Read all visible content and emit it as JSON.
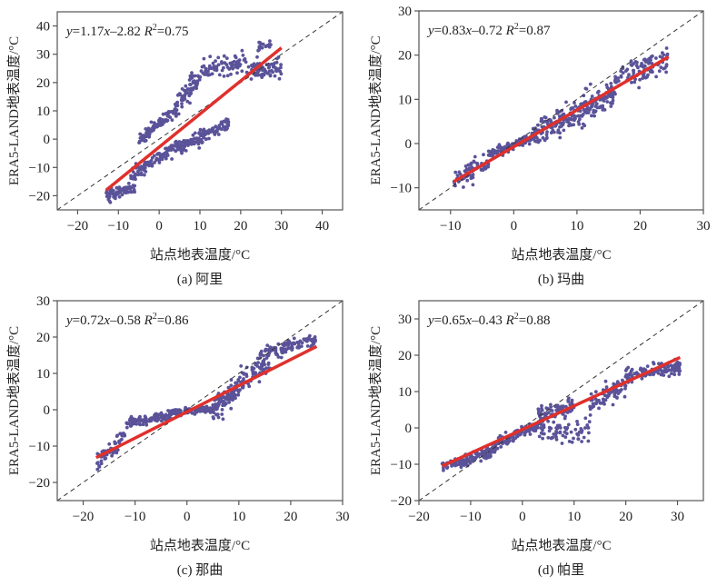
{
  "figure": {
    "colors": {
      "points": "#5a5399",
      "fit_line": "#e0302c",
      "reference_line": "#333333"
    }
  },
  "chart_data": [
    {
      "type": "scatter",
      "id": "a",
      "caption": "(a) 阿里",
      "xlabel": "站点地表温度/°C",
      "ylabel": "ERA5-LAND地表温度/°C",
      "xlim": [
        -25,
        45
      ],
      "ylim": [
        -25,
        45
      ],
      "xticks": [
        -20,
        -10,
        0,
        10,
        20,
        30,
        40
      ],
      "yticks": [
        -20,
        -10,
        0,
        10,
        20,
        30,
        40
      ],
      "equation": {
        "lhs": "y",
        "text": "=1.17",
        "var": "x",
        "tail": "–2.82",
        "r2_label": "R",
        "r2_sup": "2",
        "r2_value": "=0.75"
      },
      "fit": {
        "slope": 1.17,
        "intercept": -2.82,
        "x_range": [
          -13,
          30
        ]
      },
      "reference_line": "1:1",
      "clusters": [
        {
          "x": [
            -13,
            -6
          ],
          "y_slope": 0.45,
          "y_at_x0": -14.2,
          "spread": 2.0,
          "n": 70
        },
        {
          "x": [
            -7,
            5
          ],
          "y_slope": 0.95,
          "y_at_x0": -6.5,
          "spread": 1.8,
          "n": 110
        },
        {
          "x": [
            5,
            17
          ],
          "y_slope": 0.75,
          "y_at_x0": -6.8,
          "spread": 2.0,
          "n": 130
        },
        {
          "x": [
            -5,
            4
          ],
          "y_slope": 1.25,
          "y_at_x0": 5.5,
          "spread": 1.8,
          "n": 90
        },
        {
          "x": [
            4,
            10
          ],
          "y_slope": 1.8,
          "y_at_x0": 4.5,
          "spread": 3.5,
          "n": 70
        },
        {
          "x": [
            10,
            22
          ],
          "y_slope": 0.3,
          "y_at_x0": 20.5,
          "spread": 3.5,
          "n": 80
        },
        {
          "x": [
            22,
            30
          ],
          "y_slope": 0.0,
          "y_at_x0": 24.5,
          "spread": 3.0,
          "n": 70
        },
        {
          "x": [
            24,
            28
          ],
          "y_slope": 0.5,
          "y_at_x0": 20.0,
          "spread": 2.5,
          "n": 20
        }
      ]
    },
    {
      "type": "scatter",
      "id": "b",
      "caption": "(b) 玛曲",
      "xlabel": "站点地表温度/°C",
      "ylabel": "ERA5-LAND地表温度/°C",
      "xlim": [
        -15,
        30
      ],
      "ylim": [
        -15,
        30
      ],
      "xticks": [
        -10,
        0,
        10,
        20,
        30
      ],
      "yticks": [
        -10,
        0,
        10,
        20,
        30
      ],
      "equation": {
        "lhs": "y",
        "text": "=0.83",
        "var": "x",
        "tail": "–0.72",
        "r2_label": "R",
        "r2_sup": "2",
        "r2_value": "=0.87"
      },
      "fit": {
        "slope": 0.83,
        "intercept": -0.72,
        "x_range": [
          -9.5,
          24.5
        ]
      },
      "reference_line": "1:1",
      "clusters": [
        {
          "x": [
            -9.5,
            -4
          ],
          "y_slope": 0.7,
          "y_at_x0": -1.5,
          "spread": 2.0,
          "n": 70
        },
        {
          "x": [
            -4,
            3
          ],
          "y_slope": 0.5,
          "y_at_x0": -0.3,
          "spread": 1.0,
          "n": 110
        },
        {
          "x": [
            3,
            10
          ],
          "y_slope": 0.75,
          "y_at_x0": -0.5,
          "spread": 3.0,
          "n": 120
        },
        {
          "x": [
            10,
            16
          ],
          "y_slope": 0.8,
          "y_at_x0": -1.0,
          "spread": 3.2,
          "n": 110
        },
        {
          "x": [
            16,
            24.5
          ],
          "y_slope": 0.6,
          "y_at_x0": 4.5,
          "spread": 2.8,
          "n": 100
        }
      ]
    },
    {
      "type": "scatter",
      "id": "c",
      "caption": "(c) 那曲",
      "xlabel": "站点地表温度/°C",
      "ylabel": "ERA5-LAND地表温度/°C",
      "xlim": [
        -25,
        30
      ],
      "ylim": [
        -25,
        30
      ],
      "xticks": [
        -20,
        -10,
        0,
        10,
        20,
        30
      ],
      "yticks": [
        -20,
        -10,
        0,
        10,
        20,
        30
      ],
      "equation": {
        "lhs": "y",
        "text": "=0.72",
        "var": "x",
        "tail": "–0.58",
        "r2_label": "R",
        "r2_sup": "2",
        "r2_value": "=0.86"
      },
      "fit": {
        "slope": 0.72,
        "intercept": -0.58,
        "x_range": [
          -17.5,
          25
        ]
      },
      "reference_line": "1:1",
      "clusters": [
        {
          "x": [
            -17.5,
            -12
          ],
          "y_slope": 1.2,
          "y_at_x0": 7.0,
          "spread": 2.5,
          "n": 60
        },
        {
          "x": [
            -12,
            -3
          ],
          "y_slope": 0.25,
          "y_at_x0": -0.8,
          "spread": 1.2,
          "n": 110
        },
        {
          "x": [
            -3,
            5
          ],
          "y_slope": 0.1,
          "y_at_x0": -0.4,
          "spread": 0.8,
          "n": 110
        },
        {
          "x": [
            5,
            10
          ],
          "y_slope": 1.3,
          "y_at_x0": -6.5,
          "spread": 2.8,
          "n": 110
        },
        {
          "x": [
            10,
            16
          ],
          "y_slope": 0.9,
          "y_at_x0": -1.0,
          "spread": 3.0,
          "n": 60
        },
        {
          "x": [
            14,
            25
          ],
          "y_slope": 0.35,
          "y_at_x0": 10.5,
          "spread": 1.6,
          "n": 110
        }
      ]
    },
    {
      "type": "scatter",
      "id": "d",
      "caption": "(d) 帕里",
      "xlabel": "站点地表温度/°C",
      "ylabel": "ERA5-LAND地表温度/°C",
      "xlim": [
        -20,
        35
      ],
      "ylim": [
        -20,
        35
      ],
      "xticks": [
        -20,
        -10,
        0,
        10,
        20,
        30
      ],
      "yticks": [
        -20,
        -10,
        0,
        10,
        20,
        30
      ],
      "equation": {
        "lhs": "y",
        "text": "=0.65",
        "var": "x",
        "tail": "–0.43",
        "r2_label": "R",
        "r2_sup": "2",
        "r2_value": "=0.88"
      },
      "fit": {
        "slope": 0.65,
        "intercept": -0.43,
        "x_range": [
          -15.5,
          30.5
        ]
      },
      "reference_line": "1:1",
      "clusters": [
        {
          "x": [
            -15.5,
            -5
          ],
          "y_slope": 0.5,
          "y_at_x0": -3.5,
          "spread": 1.5,
          "n": 120
        },
        {
          "x": [
            -5,
            3
          ],
          "y_slope": 0.6,
          "y_at_x0": -1.2,
          "spread": 1.3,
          "n": 100
        },
        {
          "x": [
            3,
            10
          ],
          "y_slope": 0.3,
          "y_at_x0": 2.8,
          "spread": 2.0,
          "n": 90
        },
        {
          "x": [
            3,
            13
          ],
          "y_slope": 0.0,
          "y_at_x0": -1.0,
          "spread": 3.2,
          "n": 70
        },
        {
          "x": [
            13,
            20
          ],
          "y_slope": 0.8,
          "y_at_x0": -4.0,
          "spread": 2.2,
          "n": 80
        },
        {
          "x": [
            20,
            30.5
          ],
          "y_slope": 0.25,
          "y_at_x0": 9.5,
          "spread": 1.8,
          "n": 110
        }
      ]
    }
  ]
}
